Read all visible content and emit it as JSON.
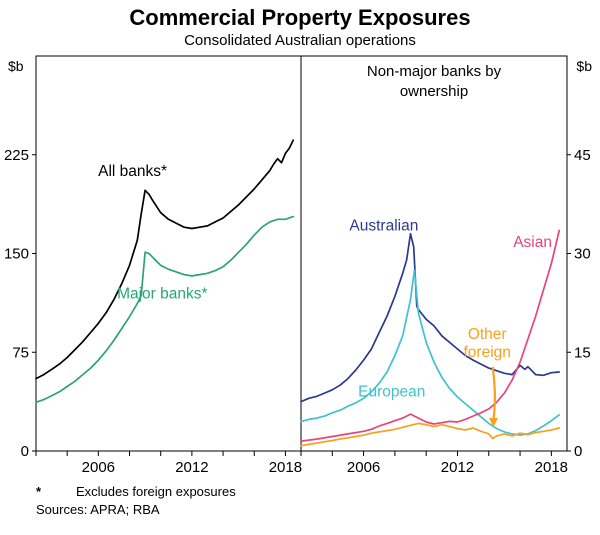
{
  "header": {
    "title": "Commercial Property Exposures",
    "subtitle": "Consolidated Australian operations"
  },
  "footnotes": {
    "star_symbol": "*",
    "star_text": "Excludes foreign exposures",
    "sources": "Sources: APRA; RBA"
  },
  "chart_data": {
    "type": "line",
    "title": "Commercial Property Exposures",
    "subtitle": "Consolidated Australian operations",
    "unit": "$b",
    "x_range": [
      2002,
      2019
    ],
    "x_minor_tick_step": 2,
    "x_tick_years": [
      2006,
      2012,
      2018
    ],
    "x_tick_labels": [
      "2006",
      "2012",
      "2018"
    ],
    "panels": [
      {
        "side": "left",
        "axis": {
          "min": 0,
          "max": 300,
          "ticks": [
            0,
            75,
            150,
            225
          ],
          "position": "left",
          "unit": "$b"
        },
        "series": [
          {
            "name": "All banks*",
            "color": "#000000",
            "points": [
              [
                2002,
                55
              ],
              [
                2002.5,
                58
              ],
              [
                2003,
                62
              ],
              [
                2003.5,
                66
              ],
              [
                2004,
                71
              ],
              [
                2004.5,
                77
              ],
              [
                2005,
                83
              ],
              [
                2005.5,
                90
              ],
              [
                2006,
                97
              ],
              [
                2006.5,
                105
              ],
              [
                2007,
                115
              ],
              [
                2007.5,
                127
              ],
              [
                2008,
                141
              ],
              [
                2008.5,
                160
              ],
              [
                2008.75,
                180
              ],
              [
                2009,
                198
              ],
              [
                2009.25,
                195
              ],
              [
                2009.5,
                190
              ],
              [
                2010,
                181
              ],
              [
                2010.5,
                176
              ],
              [
                2011,
                173
              ],
              [
                2011.5,
                170
              ],
              [
                2012,
                169
              ],
              [
                2012.5,
                170
              ],
              [
                2013,
                171
              ],
              [
                2013.5,
                174
              ],
              [
                2014,
                177
              ],
              [
                2014.5,
                182
              ],
              [
                2015,
                187
              ],
              [
                2015.5,
                193
              ],
              [
                2016,
                199
              ],
              [
                2016.5,
                206
              ],
              [
                2017,
                213
              ],
              [
                2017.25,
                218
              ],
              [
                2017.5,
                222
              ],
              [
                2017.75,
                219
              ],
              [
                2018,
                226
              ],
              [
                2018.25,
                230
              ],
              [
                2018.5,
                236
              ]
            ]
          },
          {
            "name": "Major banks*",
            "color": "#2aa572",
            "points": [
              [
                2002,
                37
              ],
              [
                2002.5,
                39
              ],
              [
                2003,
                42
              ],
              [
                2003.5,
                45
              ],
              [
                2004,
                49
              ],
              [
                2004.5,
                53
              ],
              [
                2005,
                58
              ],
              [
                2005.5,
                63
              ],
              [
                2006,
                69
              ],
              [
                2006.5,
                76
              ],
              [
                2007,
                84
              ],
              [
                2007.5,
                93
              ],
              [
                2008,
                102
              ],
              [
                2008.5,
                112
              ],
              [
                2008.75,
                118
              ],
              [
                2009,
                151
              ],
              [
                2009.25,
                150
              ],
              [
                2009.5,
                147
              ],
              [
                2010,
                141
              ],
              [
                2010.5,
                138
              ],
              [
                2011,
                136
              ],
              [
                2011.5,
                134
              ],
              [
                2012,
                133
              ],
              [
                2012.5,
                134
              ],
              [
                2013,
                135
              ],
              [
                2013.5,
                137
              ],
              [
                2014,
                140
              ],
              [
                2014.5,
                145
              ],
              [
                2015,
                151
              ],
              [
                2015.5,
                157
              ],
              [
                2016,
                164
              ],
              [
                2016.5,
                170
              ],
              [
                2017,
                174
              ],
              [
                2017.5,
                176
              ],
              [
                2018,
                176
              ],
              [
                2018.5,
                178
              ]
            ]
          }
        ],
        "labels": [
          {
            "text": "All banks*",
            "x": 2008.2,
            "y": 209,
            "color": "#000000"
          },
          {
            "text": "Major banks*",
            "x": 2010.1,
            "y": 116,
            "color": "#2aa572"
          }
        ]
      },
      {
        "side": "right",
        "title_lines": [
          "Non-major banks by",
          "ownership"
        ],
        "axis": {
          "min": 0,
          "max": 60,
          "ticks": [
            0,
            15,
            30,
            45
          ],
          "position": "right",
          "unit": "$b"
        },
        "series": [
          {
            "name": "Australian",
            "color": "#2b3990",
            "points": [
              [
                2002,
                7.5
              ],
              [
                2002.5,
                8
              ],
              [
                2003,
                8.3
              ],
              [
                2003.5,
                8.8
              ],
              [
                2004,
                9.3
              ],
              [
                2004.5,
                10
              ],
              [
                2005,
                11
              ],
              [
                2005.5,
                12.3
              ],
              [
                2006,
                13.8
              ],
              [
                2006.5,
                15.5
              ],
              [
                2007,
                18
              ],
              [
                2007.5,
                20.5
              ],
              [
                2008,
                23.5
              ],
              [
                2008.5,
                27
              ],
              [
                2008.75,
                29
              ],
              [
                2009,
                33
              ],
              [
                2009.2,
                31
              ],
              [
                2009.4,
                22
              ],
              [
                2009.5,
                21.5
              ],
              [
                2010,
                20
              ],
              [
                2010.5,
                19
              ],
              [
                2011,
                17.5
              ],
              [
                2011.5,
                16.5
              ],
              [
                2012,
                15.5
              ],
              [
                2012.5,
                14.5
              ],
              [
                2013,
                13.8
              ],
              [
                2013.5,
                13.2
              ],
              [
                2014,
                12.6
              ],
              [
                2014.5,
                12.2
              ],
              [
                2015,
                11.8
              ],
              [
                2015.5,
                11.6
              ],
              [
                2016,
                13
              ],
              [
                2016.3,
                12.4
              ],
              [
                2016.5,
                12.8
              ],
              [
                2017,
                11.6
              ],
              [
                2017.5,
                11.5
              ],
              [
                2018,
                11.9
              ],
              [
                2018.5,
                12
              ]
            ]
          },
          {
            "name": "European",
            "color": "#3fc2ce",
            "points": [
              [
                2002,
                4.5
              ],
              [
                2002.5,
                4.8
              ],
              [
                2003,
                5
              ],
              [
                2003.5,
                5.3
              ],
              [
                2004,
                5.8
              ],
              [
                2004.5,
                6.2
              ],
              [
                2005,
                6.8
              ],
              [
                2005.5,
                7.3
              ],
              [
                2006,
                8
              ],
              [
                2006.5,
                9
              ],
              [
                2007,
                10.3
              ],
              [
                2007.5,
                12
              ],
              [
                2008,
                14.5
              ],
              [
                2008.5,
                17.5
              ],
              [
                2009,
                23
              ],
              [
                2009.25,
                27.5
              ],
              [
                2009.5,
                21
              ],
              [
                2010,
                16.5
              ],
              [
                2010.5,
                13.5
              ],
              [
                2011,
                11.2
              ],
              [
                2011.5,
                9.5
              ],
              [
                2012,
                8.2
              ],
              [
                2012.5,
                7.2
              ],
              [
                2013,
                6.2
              ],
              [
                2013.5,
                5.2
              ],
              [
                2014,
                4.2
              ],
              [
                2014.5,
                3.4
              ],
              [
                2015,
                2.9
              ],
              [
                2015.5,
                2.6
              ],
              [
                2016,
                2.4
              ],
              [
                2016.5,
                2.6
              ],
              [
                2017,
                3.1
              ],
              [
                2017.5,
                3.8
              ],
              [
                2018,
                4.6
              ],
              [
                2018.5,
                5.5
              ]
            ]
          },
          {
            "name": "Asian",
            "color": "#e8447a",
            "points": [
              [
                2002,
                1.5
              ],
              [
                2003,
                1.8
              ],
              [
                2004,
                2.2
              ],
              [
                2005,
                2.6
              ],
              [
                2006,
                3
              ],
              [
                2006.5,
                3.3
              ],
              [
                2007,
                3.8
              ],
              [
                2007.5,
                4.2
              ],
              [
                2008,
                4.6
              ],
              [
                2008.5,
                5
              ],
              [
                2009,
                5.6
              ],
              [
                2009.5,
                5
              ],
              [
                2010,
                4.4
              ],
              [
                2010.5,
                4.1
              ],
              [
                2011,
                4.3
              ],
              [
                2011.5,
                4.5
              ],
              [
                2012,
                4.4
              ],
              [
                2012.5,
                4.8
              ],
              [
                2013,
                5.3
              ],
              [
                2013.5,
                5.8
              ],
              [
                2014,
                6.4
              ],
              [
                2014.5,
                7.4
              ],
              [
                2015,
                8.8
              ],
              [
                2015.5,
                10.8
              ],
              [
                2016,
                13.5
              ],
              [
                2016.5,
                17
              ],
              [
                2017,
                20.5
              ],
              [
                2017.5,
                24.5
              ],
              [
                2018,
                28.5
              ],
              [
                2018.5,
                33.5
              ]
            ]
          },
          {
            "name": "Other foreign",
            "color": "#f8a01e",
            "points": [
              [
                2002,
                0.8
              ],
              [
                2002.5,
                1
              ],
              [
                2003,
                1.2
              ],
              [
                2003.5,
                1.4
              ],
              [
                2004,
                1.6
              ],
              [
                2004.5,
                1.8
              ],
              [
                2005,
                2
              ],
              [
                2005.5,
                2.2
              ],
              [
                2006,
                2.4
              ],
              [
                2006.5,
                2.7
              ],
              [
                2007,
                2.9
              ],
              [
                2007.5,
                3.1
              ],
              [
                2008,
                3.3
              ],
              [
                2008.5,
                3.6
              ],
              [
                2009,
                3.9
              ],
              [
                2009.5,
                4.2
              ],
              [
                2010,
                4
              ],
              [
                2010.5,
                3.7
              ],
              [
                2011,
                4
              ],
              [
                2011.5,
                3.7
              ],
              [
                2012,
                3.4
              ],
              [
                2012.5,
                3.2
              ],
              [
                2013,
                3.5
              ],
              [
                2013.5,
                3
              ],
              [
                2014,
                2.6
              ],
              [
                2014.25,
                1.9
              ],
              [
                2014.5,
                2.3
              ],
              [
                2015,
                2.6
              ],
              [
                2015.5,
                2.3
              ],
              [
                2016,
                2.7
              ],
              [
                2016.5,
                2.5
              ],
              [
                2017,
                2.8
              ],
              [
                2017.5,
                3
              ],
              [
                2018,
                3.2
              ],
              [
                2018.5,
                3.5
              ]
            ]
          }
        ],
        "labels": [
          {
            "text": "Australian",
            "x": 2007.3,
            "y": 33.5,
            "color": "#2b3990"
          },
          {
            "text": "Asian",
            "x": 2016.8,
            "y": 31,
            "color": "#e8447a"
          },
          {
            "text": "Other",
            "x": 2013.9,
            "y": 17,
            "color": "#f8a01e"
          },
          {
            "text": "foreign",
            "x": 2013.9,
            "y": 14.3,
            "color": "#f8a01e"
          },
          {
            "text": "European",
            "x": 2007.8,
            "y": 8.3,
            "color": "#3fc2ce"
          }
        ],
        "arrow": {
          "from": [
            2014.25,
            12.8
          ],
          "to": [
            2014.3,
            3.8
          ],
          "color": "#f8a01e"
        }
      }
    ]
  }
}
